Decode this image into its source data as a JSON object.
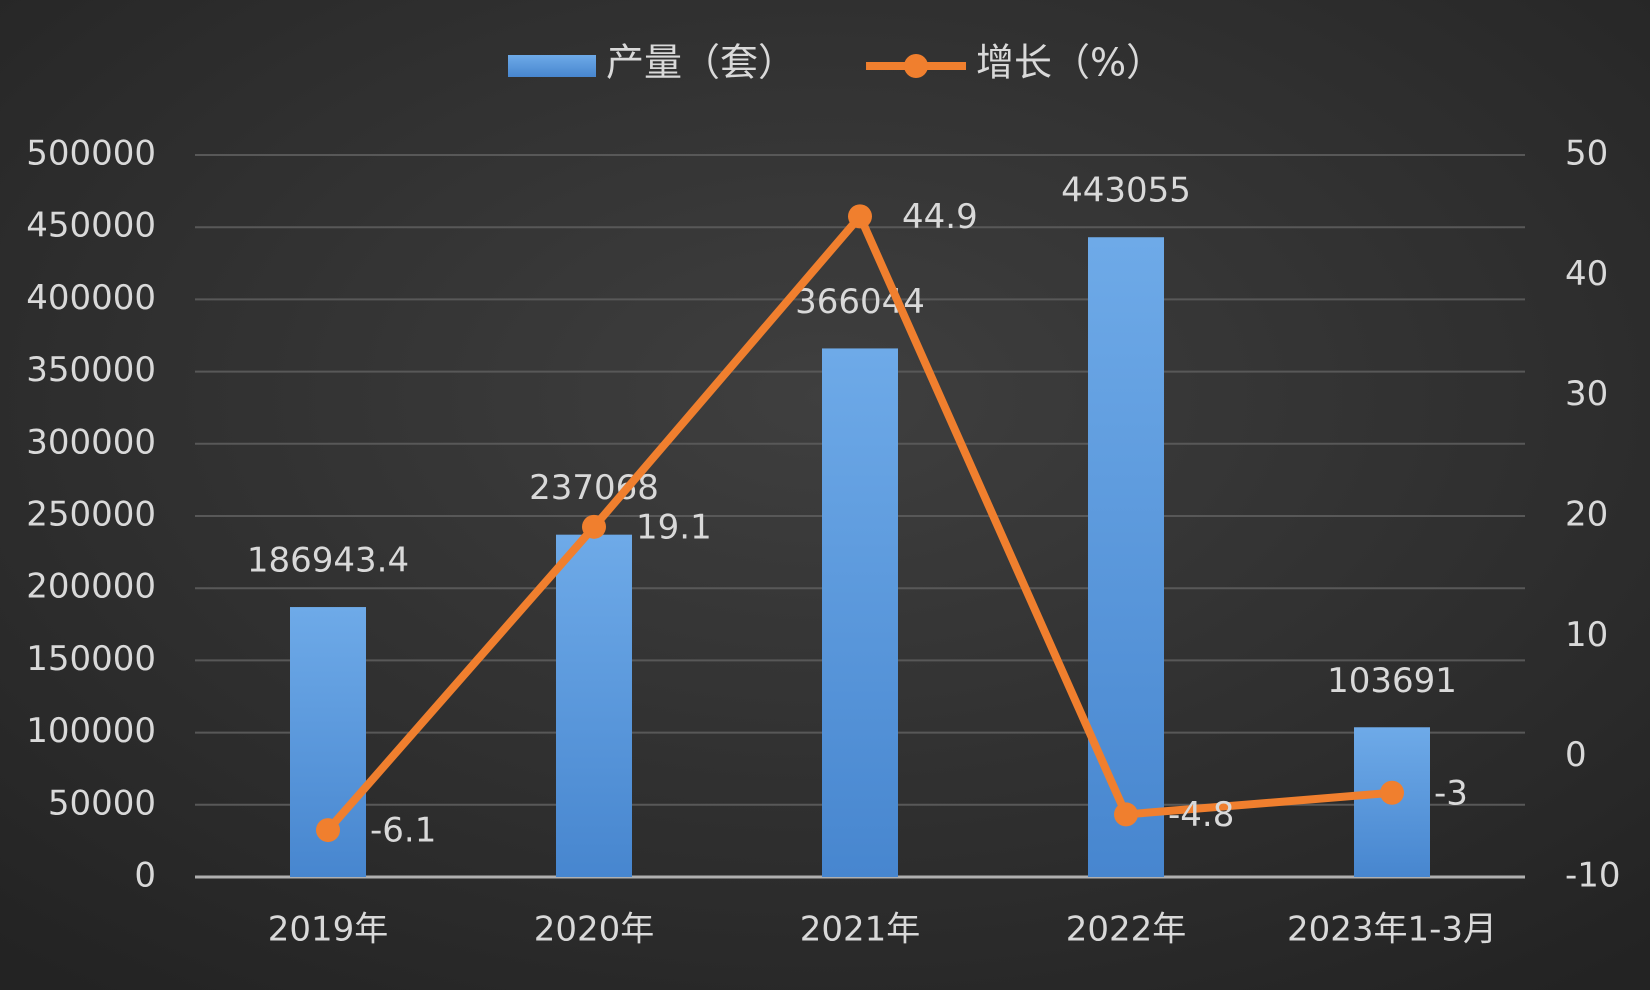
{
  "chart_data": {
    "type": "bar",
    "categories": [
      "2019年",
      "2020年",
      "2021年",
      "2022年",
      "2023年1-3月"
    ],
    "series": [
      {
        "name": "产量（套）",
        "type": "bar",
        "color": "#5b9bdf",
        "values": [
          186943.4,
          237068,
          366044,
          443055,
          103691
        ]
      },
      {
        "name": "增长（%）",
        "type": "line",
        "axis": "y2",
        "color": "#f07f2e",
        "values": [
          -6.1,
          19.1,
          44.9,
          -4.8,
          -3
        ]
      }
    ],
    "ylim": [
      0,
      500000
    ],
    "yticks": [
      0,
      50000,
      100000,
      150000,
      200000,
      250000,
      300000,
      350000,
      400000,
      450000,
      500000
    ],
    "y2lim": [
      -10,
      50
    ],
    "y2ticks": [
      -10,
      0,
      10,
      20,
      30,
      40,
      50
    ],
    "grid": true,
    "legend": "top"
  }
}
